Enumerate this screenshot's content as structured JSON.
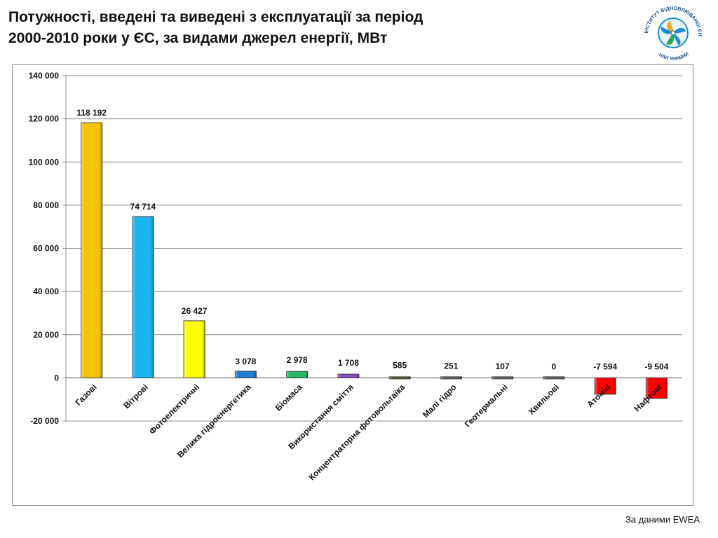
{
  "header": {
    "title_line1": "Потужності, введені та виведені з експлуатації за період",
    "title_line2": "2000-2010 роки у ЄС, за видами джерел енергії, МВт"
  },
  "logo": {
    "icon": "wind-turbine-logo-icon",
    "text_top": "ІНСТИТУТ ВІДНОВЛЮВАНОЇ ЕНЕРГЕТИКИ",
    "text_bottom": "НАН УКРАЇНИ"
  },
  "source": "За даними EWEA",
  "chart_data": {
    "type": "bar",
    "title": "",
    "xlabel": "",
    "ylabel": "",
    "ylim": [
      -20000,
      140000
    ],
    "yticks": [
      -20000,
      0,
      20000,
      40000,
      60000,
      80000,
      100000,
      120000,
      140000
    ],
    "ytick_labels": [
      "-20 000",
      "0",
      "20 000",
      "40 000",
      "60 000",
      "80 000",
      "100 000",
      "120 000",
      "140 000"
    ],
    "grid": true,
    "categories": [
      "Газові",
      "Вітрові",
      "Фотоелектричні",
      "Велика гідроенергетика",
      "Біомаса",
      "Використання сміття",
      "Концентраторна фотовольтаїка",
      "Малі гідро",
      "Геотермальні",
      "Хвильові",
      "Атомні",
      "Нафтові"
    ],
    "values": [
      118192,
      74714,
      26427,
      3078,
      2978,
      1708,
      585,
      251,
      107,
      0,
      -7594,
      -9504
    ],
    "value_labels": [
      "118 192",
      "74 714",
      "26 427",
      "3 078",
      "2 978",
      "1 708",
      "585",
      "251",
      "107",
      "0",
      "-7 594",
      "-9 504"
    ],
    "colors": [
      "#f5c400",
      "#1ab3ef",
      "#ffff00",
      "#1f7fd6",
      "#27b863",
      "#8a4fc8",
      "#6b5a3a",
      "#6b6b6b",
      "#6b6b6b",
      "#6b6b6b",
      "#ff0000",
      "#ff0000"
    ]
  }
}
